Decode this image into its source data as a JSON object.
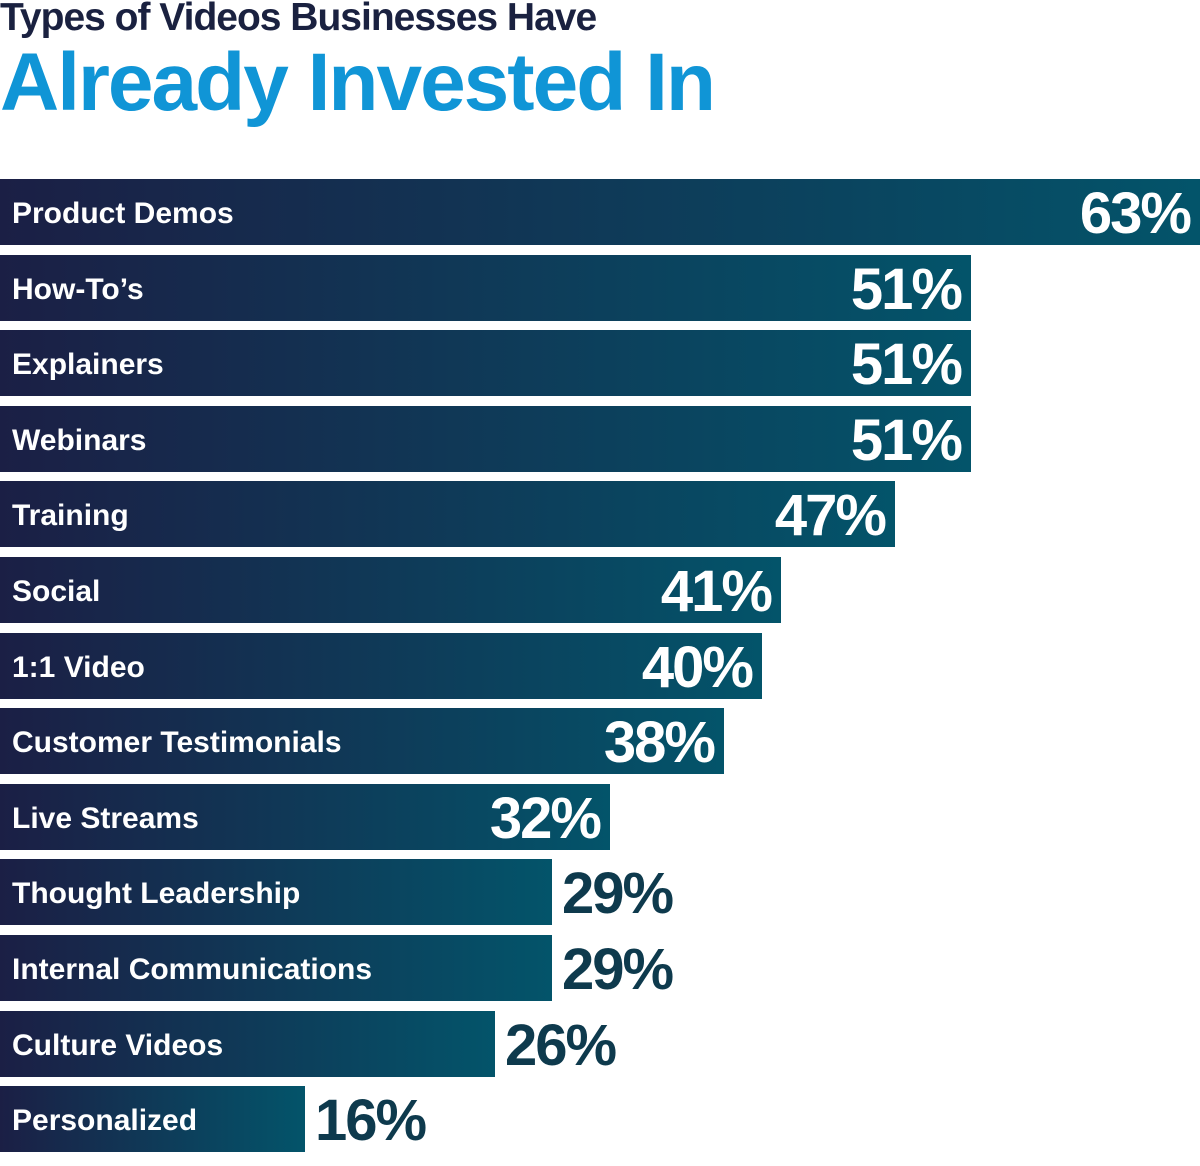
{
  "title": {
    "line1": "Types of Videos Businesses Have",
    "line2": "Already Invested In"
  },
  "colors": {
    "title_dark": "#1a2140",
    "title_accent": "#1095d6",
    "bar_gradient_start": "#1b1f45",
    "bar_gradient_end": "#03546a",
    "value_outside": "#0e3a4d",
    "value_inside": "#ffffff",
    "bar_label": "#ffffff"
  },
  "chart_data": {
    "type": "bar",
    "orientation": "horizontal",
    "title": "Types of Videos Businesses Have Already Invested In",
    "categories": [
      "Product Demos",
      "How-To’s",
      "Explainers",
      "Webinars",
      "Training",
      "Social",
      "1:1 Video",
      "Customer Testimonials",
      "Live Streams",
      "Thought Leadership",
      "Internal Communications",
      "Culture Videos",
      "Personalized"
    ],
    "values": [
      63,
      51,
      51,
      51,
      47,
      41,
      40,
      38,
      32,
      29,
      29,
      26,
      16
    ],
    "value_labels": [
      "63%",
      "51%",
      "51%",
      "51%",
      "47%",
      "41%",
      "40%",
      "38%",
      "32%",
      "29%",
      "29%",
      "26%",
      "16%"
    ],
    "unit": "%",
    "xlim": [
      0,
      63
    ],
    "grid": false,
    "legend": "none"
  }
}
